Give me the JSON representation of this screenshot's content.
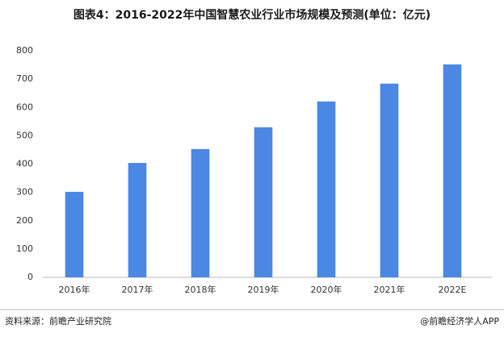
{
  "chart_data": {
    "type": "bar",
    "title": "图表4：2016-2022年中国智慧农业行业市场规模及预测(单位：亿元)",
    "categories": [
      "2016年",
      "2017年",
      "2018年",
      "2019年",
      "2020年",
      "2021年",
      "2022E"
    ],
    "values": [
      302,
      404,
      453,
      530,
      621,
      684,
      752
    ],
    "color": "#4a88e3",
    "ylim": [
      0,
      800
    ],
    "yticks": [
      0,
      100,
      200,
      300,
      400,
      500,
      600,
      700,
      800
    ],
    "grid": false,
    "source": "资料来源：前瞻产业研究院",
    "credit": "@前瞻经济学人APP"
  }
}
